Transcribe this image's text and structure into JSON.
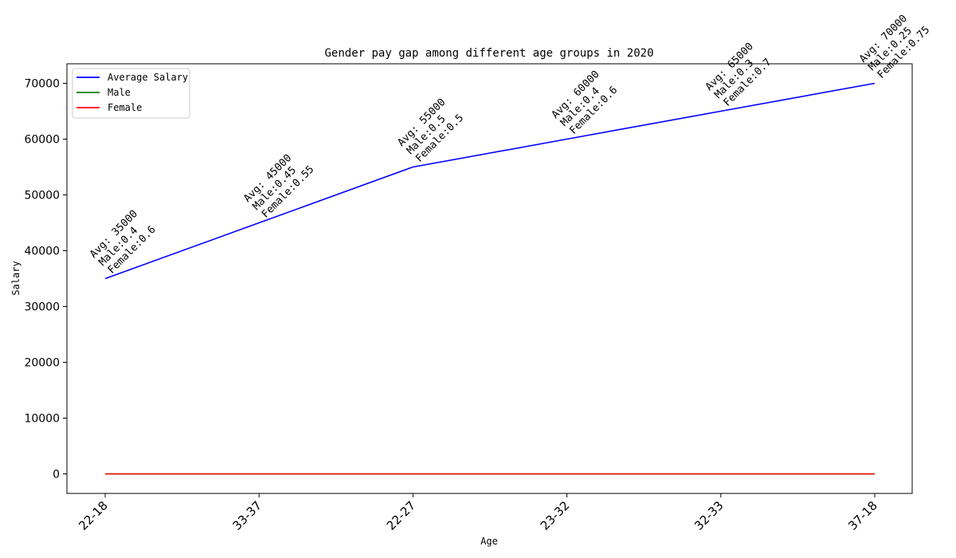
{
  "chart_data": {
    "type": "line",
    "title": "Gender pay gap among different age groups in 2020",
    "xlabel": "Age",
    "ylabel": "Salary",
    "categories": [
      "22-18",
      "33-37",
      "22-27",
      "23-32",
      "32-33",
      "37-18"
    ],
    "ylim": [
      -3500,
      73500
    ],
    "yticks": [
      0,
      10000,
      20000,
      30000,
      40000,
      50000,
      60000,
      70000
    ],
    "grid": false,
    "legend_position": "top-left",
    "series": [
      {
        "name": "Average Salary",
        "color": "#0000ff",
        "values": [
          35000,
          45000,
          55000,
          60000,
          65000,
          70000
        ]
      },
      {
        "name": "Male",
        "color": "#008000",
        "values": [
          0.4,
          0.45,
          0.5,
          0.4,
          0.3,
          0.25
        ]
      },
      {
        "name": "Female",
        "color": "#ff0000",
        "values": [
          0.6,
          0.55,
          0.5,
          0.6,
          0.7,
          0.75
        ]
      }
    ],
    "annotations": [
      [
        "Avg: 35000",
        "Male:0.4",
        "Female:0.6"
      ],
      [
        "Avg: 45000",
        "Male:0.45",
        "Female:0.55"
      ],
      [
        "Avg: 55000",
        "Male:0.5",
        "Female:0.5"
      ],
      [
        "Avg: 60000",
        "Male:0.4",
        "Female:0.6"
      ],
      [
        "Avg: 65000",
        "Male:0.3",
        "Female:0.7"
      ],
      [
        "Avg: 70000",
        "Male:0.25",
        "Female:0.75"
      ]
    ]
  }
}
